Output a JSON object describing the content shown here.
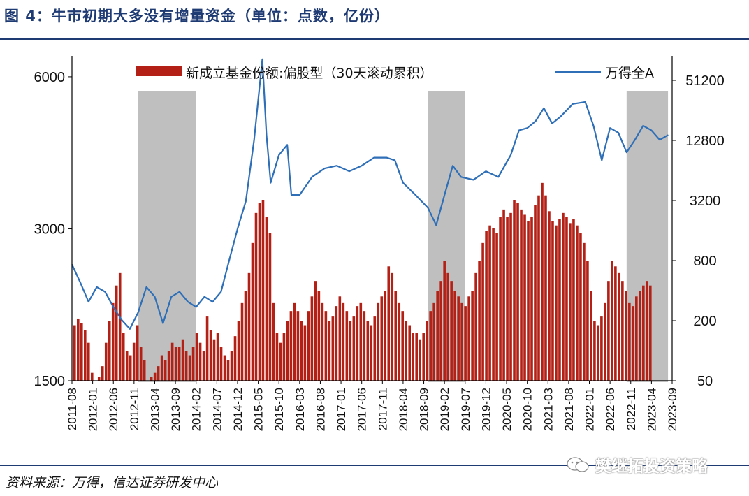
{
  "title": "图 4：牛市初期大多没有增量资金（单位：点数，亿份）",
  "source": "资料来源：万得，信达证券研发中心",
  "watermark": "樊继拓投资策略",
  "colors": {
    "bar": "#b22016",
    "line": "#2e6fb7",
    "shade": "#bfbfbf",
    "rule": "#1f3b73"
  },
  "chart_data": {
    "type": "bar+line",
    "title": "",
    "left_axis": {
      "label": "",
      "ticks": [
        1500,
        3000,
        6000
      ],
      "scale": "log",
      "range": [
        1500,
        6600
      ]
    },
    "right_axis": {
      "label": "",
      "ticks": [
        50,
        200,
        800,
        3200,
        12800,
        51200
      ],
      "scale": "log",
      "range": [
        50,
        90000
      ]
    },
    "x_axis": {
      "ticks": [
        "2011-08",
        "2012-01",
        "2012-06",
        "2012-11",
        "2013-04",
        "2013-09",
        "2014-02",
        "2014-07",
        "2014-12",
        "2015-05",
        "2015-10",
        "2016-03",
        "2016-08",
        "2017-01",
        "2017-06",
        "2017-11",
        "2018-04",
        "2018-09",
        "2019-02",
        "2019-07",
        "2019-12",
        "2020-05",
        "2020-10",
        "2021-03",
        "2021-08",
        "2022-01",
        "2022-06",
        "2022-11",
        "2023-04",
        "2023-09"
      ]
    },
    "shaded_periods": [
      [
        "2012-12",
        "2014-02"
      ],
      [
        "2018-10",
        "2019-07"
      ],
      [
        "2022-10",
        "2023-08"
      ]
    ],
    "series": [
      {
        "name": "新成立基金份额:偏股型（30天滚动累积）",
        "type": "bar",
        "axis": "right",
        "values": [
          180,
          210,
          190,
          160,
          120,
          60,
          50,
          55,
          70,
          120,
          200,
          300,
          450,
          600,
          150,
          100,
          90,
          120,
          180,
          110,
          80,
          50,
          55,
          60,
          70,
          90,
          80,
          100,
          120,
          110,
          110,
          130,
          100,
          90,
          110,
          150,
          120,
          100,
          220,
          160,
          130,
          150,
          110,
          90,
          80,
          100,
          140,
          200,
          300,
          400,
          600,
          1200,
          2400,
          3000,
          3200,
          2200,
          1500,
          300,
          150,
          120,
          150,
          200,
          250,
          300,
          250,
          200,
          180,
          250,
          350,
          500,
          400,
          300,
          250,
          200,
          220,
          280,
          350,
          300,
          250,
          200,
          220,
          280,
          300,
          250,
          200,
          180,
          220,
          300,
          350,
          400,
          700,
          600,
          400,
          300,
          250,
          200,
          180,
          150,
          150,
          130,
          150,
          200,
          250,
          300,
          400,
          500,
          800,
          600,
          500,
          400,
          350,
          300,
          280,
          350,
          400,
          600,
          800,
          1200,
          1600,
          1800,
          1700,
          1500,
          2200,
          2600,
          2200,
          2400,
          3200,
          3000,
          2600,
          2300,
          2000,
          2200,
          2900,
          3600,
          4800,
          3600,
          2500,
          2000,
          1800,
          2100,
          2400,
          2200,
          1900,
          2100,
          1800,
          1500,
          1200,
          800,
          400,
          200,
          180,
          220,
          300,
          500,
          800,
          700,
          600,
          500,
          400,
          300,
          280,
          350,
          400,
          450,
          500,
          450
        ],
        "axis_ticks": [
          50,
          200,
          800,
          3200,
          12800,
          51200
        ]
      },
      {
        "name": "万得全A",
        "type": "line",
        "axis": "left",
        "x": [
          "2011-08",
          "2011-10",
          "2011-12",
          "2012-02",
          "2012-04",
          "2012-06",
          "2012-08",
          "2012-10",
          "2012-12",
          "2013-02",
          "2013-04",
          "2013-06",
          "2013-08",
          "2013-10",
          "2013-12",
          "2014-02",
          "2014-04",
          "2014-06",
          "2014-08",
          "2014-10",
          "2014-12",
          "2015-02",
          "2015-04",
          "2015-06",
          "2015-07",
          "2015-08",
          "2015-10",
          "2015-12",
          "2016-01",
          "2016-03",
          "2016-06",
          "2016-09",
          "2016-12",
          "2017-03",
          "2017-06",
          "2017-09",
          "2017-12",
          "2018-02",
          "2018-04",
          "2018-07",
          "2018-10",
          "2018-12",
          "2019-02",
          "2019-04",
          "2019-06",
          "2019-09",
          "2019-12",
          "2020-03",
          "2020-06",
          "2020-08",
          "2020-10",
          "2020-12",
          "2021-02",
          "2021-04",
          "2021-06",
          "2021-09",
          "2021-12",
          "2022-02",
          "2022-04",
          "2022-06",
          "2022-08",
          "2022-10",
          "2022-12",
          "2023-02",
          "2023-04",
          "2023-06",
          "2023-08"
        ],
        "values": [
          2550,
          2350,
          2150,
          2300,
          2250,
          2100,
          1980,
          1900,
          2050,
          2300,
          2200,
          1950,
          2200,
          2250,
          2150,
          2100,
          2200,
          2150,
          2250,
          2600,
          3000,
          3400,
          4500,
          6500,
          4600,
          3700,
          4200,
          4400,
          3500,
          3500,
          3800,
          3950,
          4000,
          3900,
          4000,
          4150,
          4150,
          4100,
          3700,
          3500,
          3300,
          3050,
          3500,
          4000,
          3800,
          3750,
          3900,
          3800,
          4200,
          4700,
          4750,
          4900,
          5200,
          4850,
          5000,
          5300,
          5350,
          4800,
          4100,
          4750,
          4650,
          4250,
          4500,
          4800,
          4700,
          4500,
          4600
        ]
      }
    ],
    "legend": [
      {
        "label": "新成立基金份额:偏股型（30天滚动累积）",
        "marker": "bar"
      },
      {
        "label": "万得全A",
        "marker": "line"
      }
    ],
    "legend_position": "top"
  }
}
